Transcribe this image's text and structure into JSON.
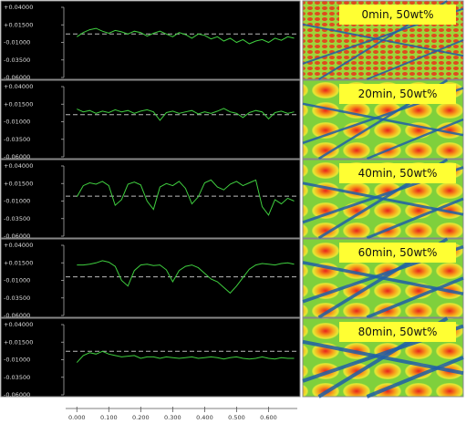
{
  "chart_data": [
    {
      "type": "line",
      "annotation": "0min, 50wt%",
      "color": "#3fcf3f",
      "reference_line": 0.002,
      "x": [
        0,
        0.02,
        0.04,
        0.06,
        0.08,
        0.1,
        0.12,
        0.14,
        0.16,
        0.18,
        0.2,
        0.22,
        0.24,
        0.26,
        0.28,
        0.3,
        0.32,
        0.34,
        0.36,
        0.38,
        0.4,
        0.42,
        0.44,
        0.46,
        0.48,
        0.5,
        0.52,
        0.54,
        0.56,
        0.58,
        0.6,
        0.62,
        0.64,
        0.66,
        0.68
      ],
      "values": [
        -0.002,
        0.004,
        0.008,
        0.01,
        0.006,
        0.003,
        0.007,
        0.005,
        0.002,
        0.006,
        0.004,
        -0.001,
        0.003,
        0.006,
        0.002,
        -0.002,
        0.004,
        0.001,
        -0.004,
        0.002,
        0.0,
        -0.005,
        -0.002,
        -0.008,
        -0.004,
        -0.01,
        -0.006,
        -0.012,
        -0.008,
        -0.006,
        -0.01,
        -0.004,
        -0.007,
        -0.002,
        -0.004
      ],
      "xlim": [
        -0.035,
        0.69
      ],
      "ylim": [
        -0.06,
        0.04
      ],
      "yticks": [
        {
          "value": 0.04,
          "label": "+0.04000"
        },
        {
          "value": 0.015,
          "label": "+0.01500"
        },
        {
          "value": -0.01,
          "label": "-0.01000"
        },
        {
          "value": -0.035,
          "label": "-0.03500"
        },
        {
          "value": -0.06,
          "label": "-0.06000"
        }
      ]
    },
    {
      "type": "line",
      "annotation": "20min, 50wt%",
      "color": "#3fcf3f",
      "reference_line": 0.0,
      "x": [
        0,
        0.02,
        0.04,
        0.06,
        0.08,
        0.1,
        0.12,
        0.14,
        0.16,
        0.18,
        0.2,
        0.22,
        0.24,
        0.26,
        0.28,
        0.3,
        0.32,
        0.34,
        0.36,
        0.38,
        0.4,
        0.42,
        0.44,
        0.46,
        0.48,
        0.5,
        0.52,
        0.54,
        0.56,
        0.58,
        0.6,
        0.62,
        0.64,
        0.66,
        0.68
      ],
      "values": [
        0.008,
        0.004,
        0.006,
        0.002,
        0.005,
        0.003,
        0.007,
        0.004,
        0.006,
        0.002,
        0.005,
        0.007,
        0.004,
        -0.008,
        0.003,
        0.005,
        0.002,
        0.004,
        0.006,
        0.001,
        0.004,
        0.002,
        0.005,
        0.009,
        0.004,
        0.002,
        -0.004,
        0.003,
        0.006,
        0.004,
        -0.006,
        0.003,
        0.005,
        0.002,
        0.004
      ],
      "xlim": [
        -0.035,
        0.69
      ],
      "ylim": [
        -0.06,
        0.04
      ],
      "yticks": [
        {
          "value": 0.04,
          "label": "+0.04000"
        },
        {
          "value": 0.015,
          "label": "+0.01500"
        },
        {
          "value": -0.01,
          "label": "-0.01000"
        },
        {
          "value": -0.035,
          "label": "-0.03500"
        },
        {
          "value": -0.06,
          "label": "-0.06000"
        }
      ]
    },
    {
      "type": "line",
      "annotation": "40min, 50wt%",
      "color": "#3fcf3f",
      "reference_line": -0.003,
      "x": [
        0,
        0.02,
        0.04,
        0.06,
        0.08,
        0.1,
        0.12,
        0.14,
        0.16,
        0.18,
        0.2,
        0.22,
        0.24,
        0.26,
        0.28,
        0.3,
        0.32,
        0.34,
        0.36,
        0.38,
        0.4,
        0.42,
        0.44,
        0.46,
        0.48,
        0.5,
        0.52,
        0.54,
        0.56,
        0.58,
        0.6,
        0.62,
        0.64,
        0.66,
        0.68
      ],
      "values": [
        -0.004,
        0.012,
        0.016,
        0.014,
        0.018,
        0.012,
        -0.016,
        -0.008,
        0.014,
        0.017,
        0.013,
        -0.01,
        -0.022,
        0.01,
        0.015,
        0.012,
        0.018,
        0.008,
        -0.014,
        -0.004,
        0.016,
        0.02,
        0.01,
        0.006,
        0.014,
        0.018,
        0.012,
        0.016,
        0.02,
        -0.018,
        -0.03,
        -0.008,
        -0.014,
        -0.006,
        -0.01
      ],
      "xlim": [
        -0.035,
        0.69
      ],
      "ylim": [
        -0.06,
        0.04
      ],
      "yticks": [
        {
          "value": 0.04,
          "label": "+0.04000"
        },
        {
          "value": 0.015,
          "label": "+0.01500"
        },
        {
          "value": -0.01,
          "label": "-0.01000"
        },
        {
          "value": -0.035,
          "label": "-0.03500"
        },
        {
          "value": -0.06,
          "label": "-0.06000"
        }
      ]
    },
    {
      "type": "line",
      "annotation": "60min, 50wt%",
      "color": "#3fcf3f",
      "reference_line": -0.005,
      "x": [
        0,
        0.02,
        0.04,
        0.06,
        0.08,
        0.1,
        0.12,
        0.14,
        0.16,
        0.18,
        0.2,
        0.22,
        0.24,
        0.26,
        0.28,
        0.3,
        0.32,
        0.34,
        0.36,
        0.38,
        0.4,
        0.42,
        0.44,
        0.46,
        0.48,
        0.5,
        0.52,
        0.54,
        0.56,
        0.58,
        0.6,
        0.62,
        0.64,
        0.66,
        0.68
      ],
      "values": [
        0.012,
        0.012,
        0.013,
        0.015,
        0.018,
        0.016,
        0.01,
        -0.01,
        -0.018,
        0.004,
        0.012,
        0.013,
        0.011,
        0.012,
        0.005,
        -0.012,
        0.004,
        0.01,
        0.012,
        0.008,
        0.0,
        -0.008,
        -0.012,
        -0.02,
        -0.028,
        -0.018,
        -0.006,
        0.006,
        0.012,
        0.014,
        0.013,
        0.012,
        0.014,
        0.015,
        0.013
      ],
      "xlim": [
        -0.035,
        0.69
      ],
      "ylim": [
        -0.06,
        0.04
      ],
      "yticks": [
        {
          "value": 0.04,
          "label": "+0.04000"
        },
        {
          "value": 0.015,
          "label": "+0.01500"
        },
        {
          "value": -0.01,
          "label": "-0.01000"
        },
        {
          "value": -0.035,
          "label": "-0.03500"
        },
        {
          "value": -0.06,
          "label": "-0.06000"
        }
      ]
    },
    {
      "type": "line",
      "annotation": "80min, 50wt%",
      "color": "#3fcf3f",
      "reference_line": 0.002,
      "x": [
        0,
        0.02,
        0.04,
        0.06,
        0.08,
        0.1,
        0.12,
        0.14,
        0.16,
        0.18,
        0.2,
        0.22,
        0.24,
        0.26,
        0.28,
        0.3,
        0.32,
        0.34,
        0.36,
        0.38,
        0.4,
        0.42,
        0.44,
        0.46,
        0.48,
        0.5,
        0.52,
        0.54,
        0.56,
        0.58,
        0.6,
        0.62,
        0.64,
        0.66,
        0.68
      ],
      "values": [
        -0.014,
        -0.004,
        0.0,
        -0.002,
        0.002,
        -0.002,
        -0.004,
        -0.006,
        -0.005,
        -0.004,
        -0.008,
        -0.006,
        -0.006,
        -0.008,
        -0.006,
        -0.007,
        -0.008,
        -0.007,
        -0.006,
        -0.008,
        -0.007,
        -0.006,
        -0.007,
        -0.009,
        -0.007,
        -0.006,
        -0.008,
        -0.009,
        -0.008,
        -0.006,
        -0.008,
        -0.009,
        -0.007,
        -0.008,
        -0.008
      ],
      "xlim": [
        -0.035,
        0.69
      ],
      "ylim": [
        -0.06,
        0.04
      ],
      "yticks": [
        {
          "value": 0.04,
          "label": "+0.04000"
        },
        {
          "value": 0.015,
          "label": "+0.01500"
        },
        {
          "value": -0.01,
          "label": "-0.01000"
        },
        {
          "value": -0.035,
          "label": "-0.03500"
        },
        {
          "value": -0.06,
          "label": "-0.06000"
        }
      ],
      "xticks": [
        {
          "value": 0,
          "label": "0.000"
        },
        {
          "value": 0.1,
          "label": "0.100"
        },
        {
          "value": 0.2,
          "label": "0.200"
        },
        {
          "value": 0.3,
          "label": "0.300"
        },
        {
          "value": 0.4,
          "label": "0.400"
        },
        {
          "value": 0.5,
          "label": "0.500"
        },
        {
          "value": 0.6,
          "label": "0.600"
        }
      ]
    }
  ]
}
